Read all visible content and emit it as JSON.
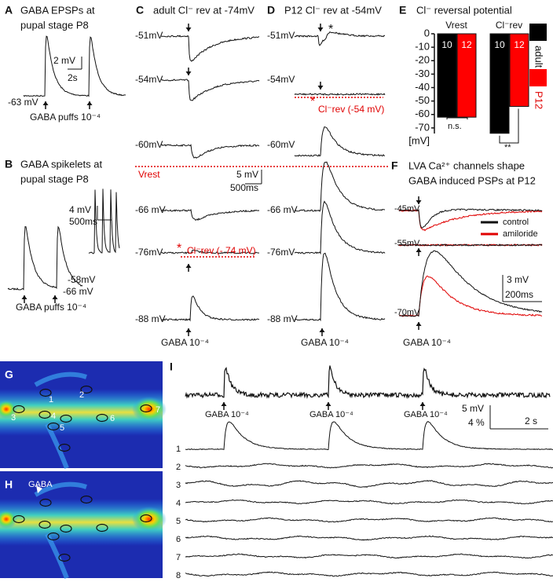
{
  "panels": {
    "A": {
      "letter": "A",
      "title": [
        "GABA EPSPs at",
        "pupal stage P8"
      ],
      "scale_y": "2 mV",
      "scale_x": "2s",
      "baseline": "-63 mV",
      "stimulus": "GABA puffs 10⁻⁴"
    },
    "B": {
      "letter": "B",
      "title": [
        "GABA spikelets at",
        "pupal stage P8"
      ],
      "scale_y": "4 mV",
      "scale_x": "500ms",
      "inset_baseline": "-58mV",
      "baseline": "-66 mV",
      "stimulus": "GABA puffs 10⁻⁴"
    },
    "C": {
      "letter": "C",
      "title": "adult Cl⁻ rev at -74mV",
      "holding": [
        "-51mV",
        "-54mV",
        "-60mV",
        "-66 mV",
        "-76mV",
        "-88 mV"
      ],
      "vrest": "Vrest",
      "reversal_marker": "*",
      "reversal": "Cl⁻rev (- 74 mV)",
      "scale_y": "5 mV",
      "scale_x": "500ms",
      "stimulus": "GABA 10⁻⁴"
    },
    "D": {
      "letter": "D",
      "title": "P12 Cl⁻ rev at -54mV",
      "holding": [
        "-51mV",
        "-54mV",
        "-60mV",
        "-66 mV",
        "-76mV",
        "-88 mV"
      ],
      "asterisk": "*",
      "reversal_marker": "*",
      "reversal": "Cl⁻rev (-54 mV)",
      "stimulus": "GABA 10⁻⁴"
    },
    "F": {
      "letter": "F",
      "title": [
        "LVA Ca²⁺ channels shape",
        "GABA induced PSPs at P12"
      ],
      "holding": [
        "-45mV",
        "-55mV",
        "-70mV"
      ],
      "legend": [
        "control",
        "amiloride"
      ],
      "scale_y": "3 mV",
      "scale_x": "200ms",
      "stimulus": "GABA 10⁻⁴"
    },
    "G": {
      "letter": "G",
      "rois": [
        "1",
        "2",
        "3",
        "4",
        "5",
        "6",
        "7"
      ]
    },
    "H": {
      "letter": "H",
      "stimulus": "GABA"
    },
    "I": {
      "letter": "I",
      "stimuli": [
        "GABA 10⁻⁴",
        "GABA 10⁻⁴",
        "GABA 10⁻⁴"
      ],
      "scale_y": "5 mV",
      "scale_y2": "4 %",
      "scale_x": "2 s",
      "rows": [
        "1",
        "2",
        "3",
        "4",
        "5",
        "6",
        "7",
        "8"
      ]
    }
  },
  "chart_data": {
    "type": "bar",
    "letter": "E",
    "title": "Cl⁻ reversal potential",
    "categories": [
      "Vrest",
      "Cl⁻rev"
    ],
    "y_label": "[mV]",
    "ylim": [
      -80,
      0
    ],
    "yticks": [
      0,
      -10,
      -20,
      -30,
      -40,
      -50,
      -60,
      -70
    ],
    "series": [
      {
        "name": "adult",
        "color": "#000000",
        "values": [
          -62,
          -74
        ],
        "n": [
          10,
          10
        ]
      },
      {
        "name": "P12",
        "color": "#ff0000",
        "values": [
          -62,
          -54
        ],
        "n": [
          12,
          12
        ]
      }
    ],
    "annotations": [
      "n.s.",
      "**"
    ]
  }
}
